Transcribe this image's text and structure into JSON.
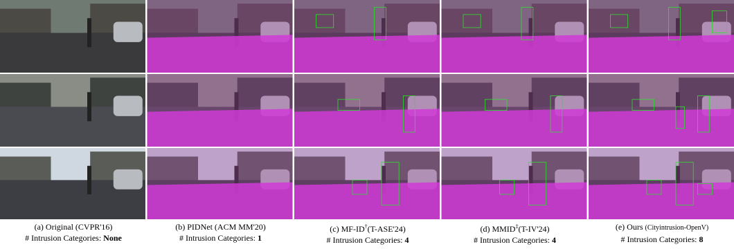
{
  "panels": [
    {
      "label": "(a)",
      "name": "Original",
      "venue": "(CVPR'16)",
      "count_label": "# Intrusion Categories:",
      "count": "None"
    },
    {
      "label": "(b)",
      "name": "PIDNet",
      "venue": "(ACM MM'20)",
      "count_label": "# Intrusion Categories:",
      "count": 1
    },
    {
      "label": "(c)",
      "name": "MF-ID",
      "mark": "†",
      "venue": "(T-ASE'24)",
      "count_label": "# Intrusion Categories:",
      "count": 4
    },
    {
      "label": "(d)",
      "name": "MMID",
      "mark": "‡",
      "venue": "(T-IV'24)",
      "count_label": "# Intrusion Categories:",
      "count": 4
    },
    {
      "label": "(e)",
      "name": "Ours",
      "venue": "(Cityintrusion-OpenV)",
      "count_label": "# Intrusion Categories:",
      "count": 8
    }
  ]
}
